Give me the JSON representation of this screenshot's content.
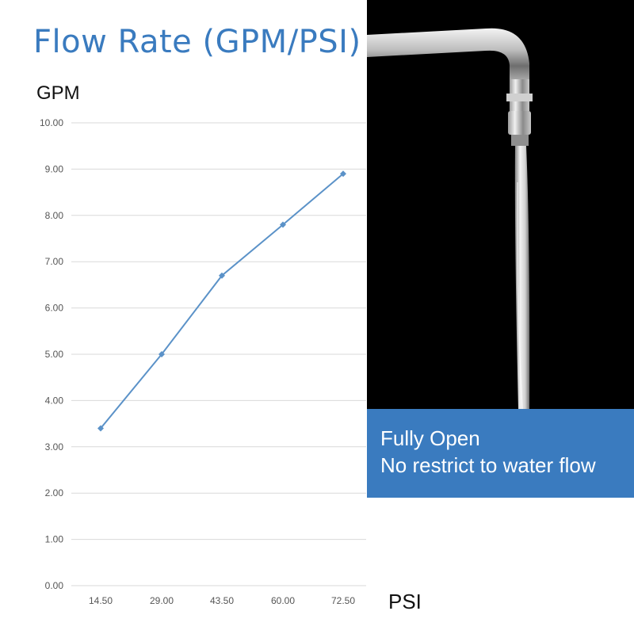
{
  "chart_data": {
    "type": "line",
    "title": "Flow Rate (GPM/PSI)",
    "ylabel": "GPM",
    "xlabel": "PSI",
    "categories": [
      "14.50",
      "29.00",
      "43.50",
      "60.00",
      "72.50"
    ],
    "series": [
      {
        "values": [
          3.4,
          5.0,
          6.7,
          7.8,
          8.9
        ]
      }
    ],
    "y_ticks": [
      "0.00",
      "1.00",
      "2.00",
      "3.00",
      "4.00",
      "5.00",
      "6.00",
      "7.00",
      "8.00",
      "9.00",
      "10.00"
    ],
    "ylim": [
      0,
      10
    ],
    "grid": true,
    "line_color": "#5b92c8"
  },
  "banner": {
    "line1": "Fully Open",
    "line2": "No restrict to water flow"
  }
}
